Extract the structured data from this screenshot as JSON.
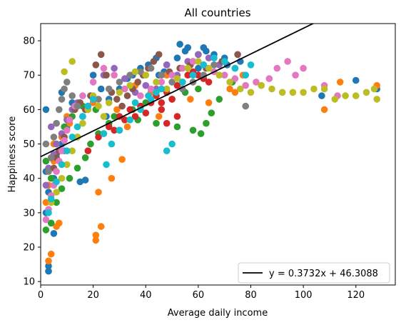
{
  "chart_data": {
    "type": "scatter",
    "title": "All countries",
    "xlabel": "Average daily income",
    "ylabel": "Happiness score",
    "xlim": [
      0,
      135
    ],
    "ylim": [
      9,
      85
    ],
    "xticks": [
      0,
      20,
      40,
      60,
      80,
      100,
      120
    ],
    "yticks": [
      10,
      20,
      30,
      40,
      50,
      60,
      70,
      80
    ],
    "grid": false,
    "legend_position": "lower-right",
    "trendline": {
      "label": "y = 0.3732x + 46.3088",
      "slope": 0.3732,
      "intercept": 46.3088,
      "x_range": [
        0,
        130
      ],
      "color": "#000000"
    },
    "palette": [
      "#1f77b4",
      "#ff7f0e",
      "#2ca02c",
      "#d62728",
      "#9467bd",
      "#8c564b",
      "#e377c2",
      "#7f7f7f",
      "#bcbd22",
      "#17becf"
    ],
    "series": [
      {
        "color": "#1f77b4",
        "points": [
          [
            3,
            13
          ],
          [
            3,
            14.5
          ],
          [
            5,
            24
          ],
          [
            2,
            30
          ],
          [
            3,
            36
          ],
          [
            2,
            42
          ],
          [
            6,
            47
          ],
          [
            10,
            55
          ],
          [
            15,
            39
          ],
          [
            17,
            39.5
          ],
          [
            25,
            58
          ],
          [
            30,
            66
          ],
          [
            33,
            69
          ],
          [
            38,
            72
          ],
          [
            44,
            75
          ],
          [
            48,
            73
          ],
          [
            53,
            79
          ],
          [
            56,
            78
          ],
          [
            58,
            74
          ],
          [
            60,
            76
          ],
          [
            63,
            77
          ],
          [
            66,
            76
          ],
          [
            71,
            73
          ],
          [
            76,
            74
          ],
          [
            8,
            65
          ],
          [
            12,
            62
          ],
          [
            20,
            70
          ],
          [
            23,
            66
          ],
          [
            41,
            73
          ],
          [
            45,
            70
          ],
          [
            107,
            64
          ],
          [
            120,
            68.5
          ],
          [
            128,
            66
          ],
          [
            70,
            75
          ],
          [
            60,
            72
          ],
          [
            52,
            75
          ],
          [
            2,
            60
          ],
          [
            5,
            40
          ],
          [
            8,
            50
          ],
          [
            14,
            52
          ],
          [
            18,
            61
          ],
          [
            26,
            63
          ],
          [
            35,
            70
          ],
          [
            47,
            71
          ],
          [
            55,
            77
          ],
          [
            62,
            78
          ]
        ]
      },
      {
        "color": "#ff7f0e",
        "points": [
          [
            3,
            16
          ],
          [
            4,
            18
          ],
          [
            6,
            26
          ],
          [
            7,
            27
          ],
          [
            21,
            22
          ],
          [
            21,
            23.5
          ],
          [
            22,
            36
          ],
          [
            23,
            26
          ],
          [
            27,
            40
          ],
          [
            31,
            45.5
          ],
          [
            2,
            33
          ],
          [
            3,
            38
          ],
          [
            5,
            45
          ],
          [
            8,
            52
          ],
          [
            11,
            56
          ],
          [
            14,
            61
          ],
          [
            24,
            53
          ],
          [
            29,
            60
          ],
          [
            36,
            67
          ],
          [
            42,
            65
          ],
          [
            48,
            70
          ],
          [
            57,
            63
          ],
          [
            64,
            62
          ],
          [
            72,
            66
          ],
          [
            74,
            65
          ],
          [
            77,
            70
          ],
          [
            84,
            67
          ],
          [
            108,
            60
          ],
          [
            114,
            68
          ],
          [
            128,
            67
          ],
          [
            5,
            50
          ],
          [
            10,
            58
          ],
          [
            20,
            62
          ],
          [
            33,
            55
          ],
          [
            45,
            58
          ]
        ]
      },
      {
        "color": "#2ca02c",
        "points": [
          [
            2,
            25
          ],
          [
            4,
            27
          ],
          [
            6,
            33
          ],
          [
            8,
            37
          ],
          [
            11,
            40
          ],
          [
            14,
            43
          ],
          [
            17,
            46
          ],
          [
            19,
            50
          ],
          [
            22,
            53
          ],
          [
            26,
            56
          ],
          [
            30,
            54
          ],
          [
            37,
            57
          ],
          [
            44,
            56
          ],
          [
            52,
            55
          ],
          [
            58,
            54
          ],
          [
            61,
            53
          ],
          [
            63,
            56
          ],
          [
            65,
            59
          ],
          [
            68,
            63
          ],
          [
            2,
            45
          ],
          [
            6,
            50
          ],
          [
            9,
            55
          ],
          [
            12,
            58
          ],
          [
            16,
            61
          ],
          [
            21,
            60
          ],
          [
            28,
            58
          ],
          [
            35,
            60
          ],
          [
            40,
            62
          ],
          [
            50,
            63
          ],
          [
            55,
            65
          ],
          [
            60,
            66
          ],
          [
            73,
            68
          ],
          [
            4,
            40
          ]
        ]
      },
      {
        "color": "#d62728",
        "points": [
          [
            18,
            48
          ],
          [
            22,
            52
          ],
          [
            26,
            55
          ],
          [
            30,
            58
          ],
          [
            34,
            60
          ],
          [
            38,
            61
          ],
          [
            42,
            62
          ],
          [
            46,
            60
          ],
          [
            48,
            65
          ],
          [
            50,
            63
          ],
          [
            52,
            67
          ],
          [
            54,
            68
          ],
          [
            56,
            70
          ],
          [
            58,
            71
          ],
          [
            60,
            70
          ],
          [
            62,
            69
          ],
          [
            64,
            68
          ],
          [
            44,
            64
          ],
          [
            40,
            59
          ],
          [
            36,
            58
          ],
          [
            32,
            57
          ],
          [
            28,
            54
          ],
          [
            46,
            62
          ],
          [
            52,
            58
          ],
          [
            48,
            56
          ]
        ]
      },
      {
        "color": "#9467bd",
        "points": [
          [
            2,
            38
          ],
          [
            3,
            43
          ],
          [
            5,
            47
          ],
          [
            6,
            50
          ],
          [
            8,
            53
          ],
          [
            10,
            57
          ],
          [
            12,
            60
          ],
          [
            14,
            62
          ],
          [
            16,
            58
          ],
          [
            20,
            63
          ],
          [
            24,
            70
          ],
          [
            28,
            72
          ],
          [
            32,
            69
          ],
          [
            36,
            65
          ],
          [
            40,
            67
          ],
          [
            44,
            66
          ],
          [
            48,
            73
          ],
          [
            52,
            70
          ],
          [
            56,
            74
          ],
          [
            60,
            76
          ],
          [
            64,
            75
          ],
          [
            68,
            73
          ],
          [
            4,
            55
          ],
          [
            9,
            48
          ]
        ]
      },
      {
        "color": "#8c564b",
        "points": [
          [
            5,
            43
          ],
          [
            7,
            48
          ],
          [
            9,
            52
          ],
          [
            11,
            57
          ],
          [
            13,
            60
          ],
          [
            15,
            62
          ],
          [
            17,
            60
          ],
          [
            19,
            64
          ],
          [
            21,
            73
          ],
          [
            23,
            76
          ],
          [
            25,
            70
          ],
          [
            27,
            65
          ],
          [
            29,
            63
          ],
          [
            31,
            61
          ],
          [
            33,
            64
          ],
          [
            35,
            66
          ],
          [
            37,
            68
          ],
          [
            39,
            70
          ],
          [
            41,
            72
          ],
          [
            43,
            74
          ],
          [
            45,
            76
          ],
          [
            49,
            71
          ],
          [
            53,
            72
          ],
          [
            57,
            73
          ],
          [
            63,
            72
          ],
          [
            69,
            74
          ],
          [
            75,
            76
          ],
          [
            6,
            46
          ]
        ]
      },
      {
        "color": "#e377c2",
        "points": [
          [
            2,
            28
          ],
          [
            3,
            31
          ],
          [
            4,
            35
          ],
          [
            5,
            38
          ],
          [
            6,
            42
          ],
          [
            7,
            45
          ],
          [
            8,
            48
          ],
          [
            9,
            51
          ],
          [
            10,
            54
          ],
          [
            11,
            57
          ],
          [
            13,
            61
          ],
          [
            16,
            64
          ],
          [
            20,
            68
          ],
          [
            24,
            72
          ],
          [
            28,
            70
          ],
          [
            32,
            66
          ],
          [
            38,
            64
          ],
          [
            42,
            66
          ],
          [
            46,
            68
          ],
          [
            50,
            70
          ],
          [
            54,
            72
          ],
          [
            58,
            74
          ],
          [
            62,
            73
          ],
          [
            66,
            71
          ],
          [
            70,
            70
          ],
          [
            74,
            69
          ],
          [
            78,
            67
          ],
          [
            82,
            68
          ],
          [
            87,
            69
          ],
          [
            90,
            72
          ],
          [
            94,
            74
          ],
          [
            97,
            70
          ],
          [
            100,
            72
          ],
          [
            108,
            67
          ],
          [
            113,
            64
          ],
          [
            4,
            46
          ]
        ]
      },
      {
        "color": "#7f7f7f",
        "points": [
          [
            3,
            42
          ],
          [
            4,
            46
          ],
          [
            5,
            52
          ],
          [
            6,
            56
          ],
          [
            7,
            60
          ],
          [
            8,
            63
          ],
          [
            9,
            66
          ],
          [
            10,
            68
          ],
          [
            12,
            64
          ],
          [
            14,
            61
          ],
          [
            16,
            58
          ],
          [
            18,
            60
          ],
          [
            22,
            63
          ],
          [
            26,
            66
          ],
          [
            30,
            68
          ],
          [
            34,
            70
          ],
          [
            38,
            71
          ],
          [
            42,
            72
          ],
          [
            46,
            70
          ],
          [
            50,
            68
          ],
          [
            54,
            66
          ],
          [
            58,
            68
          ],
          [
            62,
            70
          ],
          [
            66,
            73
          ],
          [
            70,
            74
          ],
          [
            74,
            72
          ],
          [
            78,
            61
          ],
          [
            2,
            50
          ]
        ]
      },
      {
        "color": "#bcbd22",
        "points": [
          [
            4,
            33
          ],
          [
            6,
            36
          ],
          [
            8,
            40
          ],
          [
            10,
            44
          ],
          [
            12,
            48
          ],
          [
            14,
            52
          ],
          [
            16,
            56
          ],
          [
            18,
            60
          ],
          [
            20,
            64
          ],
          [
            22,
            61
          ],
          [
            24,
            58
          ],
          [
            26,
            62
          ],
          [
            30,
            65
          ],
          [
            34,
            67
          ],
          [
            36,
            71
          ],
          [
            40,
            70
          ],
          [
            44,
            68
          ],
          [
            48,
            66
          ],
          [
            52,
            69
          ],
          [
            56,
            72
          ],
          [
            60,
            74
          ],
          [
            64,
            72
          ],
          [
            68,
            70
          ],
          [
            72,
            68
          ],
          [
            76,
            66
          ],
          [
            80,
            65
          ],
          [
            84,
            67
          ],
          [
            88,
            66
          ],
          [
            92,
            65
          ],
          [
            96,
            65
          ],
          [
            100,
            65
          ],
          [
            104,
            66
          ],
          [
            108,
            66
          ],
          [
            112,
            63
          ],
          [
            116,
            64
          ],
          [
            120,
            64
          ],
          [
            124,
            65
          ],
          [
            127,
            66
          ],
          [
            128,
            63
          ],
          [
            12,
            74
          ],
          [
            9,
            71
          ]
        ]
      },
      {
        "color": "#17becf",
        "points": [
          [
            3,
            30
          ],
          [
            4,
            34
          ],
          [
            6,
            39
          ],
          [
            8,
            44
          ],
          [
            10,
            48
          ],
          [
            12,
            52
          ],
          [
            14,
            55
          ],
          [
            16,
            58
          ],
          [
            18,
            61
          ],
          [
            20,
            63
          ],
          [
            24,
            53
          ],
          [
            27,
            50
          ],
          [
            30,
            54
          ],
          [
            34,
            57
          ],
          [
            38,
            60
          ],
          [
            42,
            63
          ],
          [
            46,
            66
          ],
          [
            48,
            48
          ],
          [
            50,
            50
          ],
          [
            54,
            68
          ],
          [
            58,
            70
          ],
          [
            62,
            73
          ],
          [
            66,
            75
          ],
          [
            70,
            74
          ],
          [
            74,
            72
          ],
          [
            78,
            70
          ],
          [
            80,
            73
          ],
          [
            25,
            44
          ],
          [
            44,
            65
          ],
          [
            36,
            62
          ],
          [
            41,
            64
          ]
        ]
      }
    ]
  }
}
